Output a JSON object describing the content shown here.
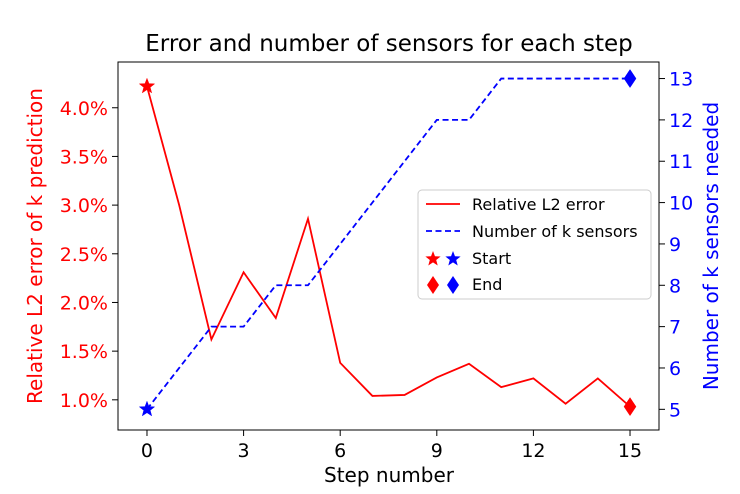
{
  "chart_data": {
    "type": "line",
    "title": "Error and number of sensors for each step",
    "xlabel": "Step number",
    "ylabel_left": "Relative L2 error of k prediction",
    "ylabel_right": "Number of k sensors needed",
    "xlim": [
      -0.9,
      15.9
    ],
    "ylim_left": [
      0.69,
      4.47
    ],
    "ylim_right": [
      4.5,
      13.4
    ],
    "xticks": [
      0,
      3,
      6,
      9,
      12,
      15
    ],
    "yticks_left": [
      1.0,
      1.5,
      2.0,
      2.5,
      3.0,
      3.5,
      4.0
    ],
    "yticks_left_labels": [
      "1.0%",
      "1.5%",
      "2.0%",
      "2.5%",
      "3.0%",
      "3.5%",
      "4.0%"
    ],
    "yticks_right": [
      5,
      6,
      7,
      8,
      9,
      10,
      11,
      12,
      13
    ],
    "grid": false,
    "legend_position": "center-right",
    "colors": {
      "left": "#ff0000",
      "right": "#0000ff",
      "text": "#000000"
    },
    "series": [
      {
        "name": "Relative L2 error",
        "axis": "left",
        "style": "solid",
        "color": "#ff0000",
        "x": [
          0,
          1,
          2,
          3,
          4,
          5,
          6,
          7,
          8,
          9,
          10,
          11,
          12,
          13,
          14,
          15
        ],
        "y": [
          4.22,
          3.0,
          1.62,
          2.31,
          1.84,
          2.86,
          1.38,
          1.04,
          1.05,
          1.23,
          1.37,
          1.13,
          1.22,
          0.96,
          1.22,
          0.93
        ]
      },
      {
        "name": "Number of k sensors",
        "axis": "right",
        "style": "dashed",
        "color": "#0000ff",
        "x": [
          0,
          1,
          2,
          3,
          4,
          5,
          6,
          7,
          8,
          9,
          10,
          11,
          12,
          13,
          14,
          15
        ],
        "y": [
          5,
          6,
          7,
          7,
          8,
          8,
          9,
          10,
          11,
          12,
          12,
          13,
          13,
          13,
          13,
          13
        ]
      }
    ],
    "markers": [
      {
        "label": "Start",
        "shape": "star",
        "x": 0,
        "red_y": 4.22,
        "blue_y": 5
      },
      {
        "label": "End",
        "shape": "diamond",
        "x": 15,
        "red_y": 0.93,
        "blue_y": 13
      }
    ]
  }
}
